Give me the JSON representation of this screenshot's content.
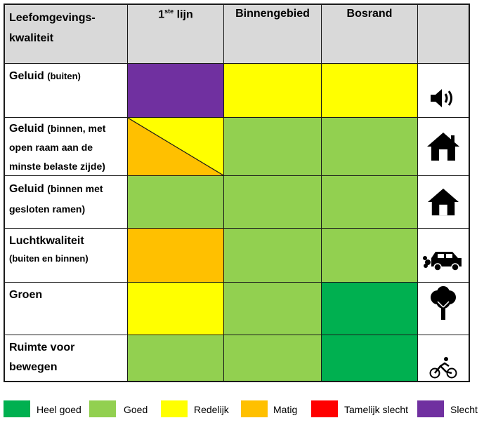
{
  "header": {
    "col0_line1": "Leefomgevings-",
    "col0_line2": "kwaliteit",
    "col1_main": "1",
    "col1_sup": "ste",
    "col1_rest": " lijn",
    "col2": "Binnengebied",
    "col3": "Bosrand"
  },
  "colors": {
    "heel_goed": "#00b050",
    "goed": "#92d050",
    "redelijk": "#ffff00",
    "matig": "#ffc000",
    "tamelijk_slecht": "#ff0000",
    "slecht": "#7030a0"
  },
  "rows": [
    {
      "title": "Geluid",
      "sub": "(buiten)",
      "icon": "speaker-icon",
      "values": [
        "Slecht",
        "Redelijk",
        "Redelijk"
      ]
    },
    {
      "title": "Geluid",
      "sub": "(binnen, met open raam aan de minste belaste zijde)",
      "icon": "house-icon",
      "values": [
        "Matig/Redelijk",
        "Goed",
        "Goed"
      ]
    },
    {
      "title": "Geluid",
      "sub": "(binnen met gesloten ramen)",
      "icon": "house-icon",
      "values": [
        "Goed",
        "Goed",
        "Goed"
      ]
    },
    {
      "title": "Luchtkwaliteit",
      "sub": "(buiten en binnen)",
      "icon": "car-exhaust-icon",
      "values": [
        "Matig",
        "Goed",
        "Goed"
      ]
    },
    {
      "title": "Groen",
      "sub": "",
      "icon": "tree-icon",
      "values": [
        "Redelijk",
        "Goed",
        "Heel goed"
      ]
    },
    {
      "title": "Ruimte voor bewegen",
      "sub": "",
      "icon": "cyclist-icon",
      "values": [
        "Goed",
        "Goed",
        "Heel goed"
      ]
    }
  ],
  "legend": [
    {
      "label": "Heel goed",
      "color": "#00b050"
    },
    {
      "label": "Goed",
      "color": "#92d050"
    },
    {
      "label": "Redelijk",
      "color": "#ffff00"
    },
    {
      "label": "Matig",
      "color": "#ffc000"
    },
    {
      "label": "Tamelijk slecht",
      "color": "#ff0000"
    },
    {
      "label": "Slecht",
      "color": "#7030a0"
    }
  ]
}
